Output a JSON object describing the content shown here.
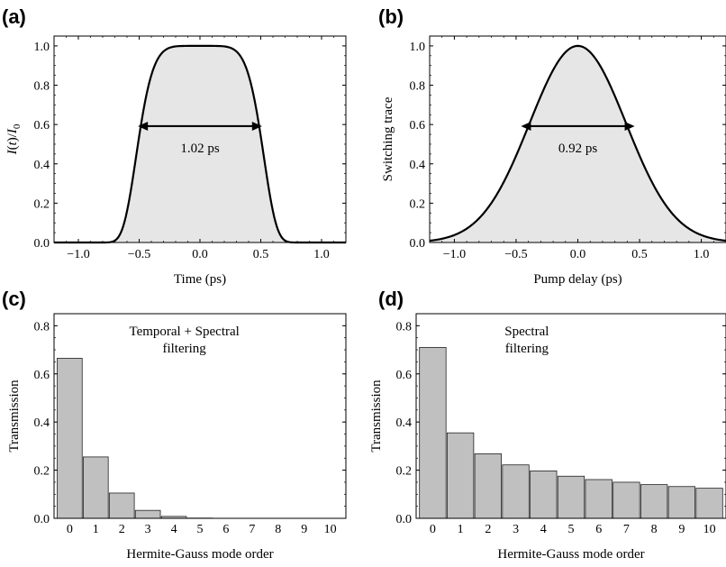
{
  "chart_data": [
    {
      "panel": "(a)",
      "type": "area",
      "xlabel": "Time (ps)",
      "ylabel_parts": [
        "I",
        "(",
        "t",
        ")/",
        "I",
        "0"
      ],
      "xlim": [
        -1.2,
        1.2
      ],
      "ylim": [
        0,
        1.05
      ],
      "xticks": [
        -1.0,
        -0.5,
        0.0,
        0.5,
        1.0
      ],
      "xtick_labels": [
        "−1.0",
        "−0.5",
        "0.0",
        "0.5",
        "1.0"
      ],
      "yticks": [
        0,
        0.2,
        0.4,
        0.6,
        0.8,
        1.0
      ],
      "ytick_labels": [
        "0.0",
        "0.2",
        "0.4",
        "0.6",
        "0.8",
        "1.0"
      ],
      "curve": {
        "kind": "supergaussian",
        "center": 0.0,
        "fwhm": 1.02,
        "order": 6,
        "peak": 1.0,
        "samples": [
          [
            -1.0,
            0.0
          ],
          [
            -0.8,
            0.04
          ],
          [
            -0.6,
            0.38
          ],
          [
            -0.51,
            0.5
          ],
          [
            -0.4,
            0.82
          ],
          [
            -0.2,
            0.99
          ],
          [
            0.0,
            1.0
          ],
          [
            0.2,
            0.99
          ],
          [
            0.4,
            0.82
          ],
          [
            0.51,
            0.5
          ],
          [
            0.6,
            0.38
          ],
          [
            0.8,
            0.04
          ],
          [
            1.0,
            0.0
          ]
        ]
      },
      "annotation": {
        "text": "1.02 ps",
        "arrow_from": -0.51,
        "arrow_to": 0.51,
        "arrow_y": 0.5
      },
      "fill_color": "#e6e6e6",
      "line_color": "#000000"
    },
    {
      "panel": "(b)",
      "type": "area",
      "xlabel": "Pump delay (ps)",
      "ylabel": "Switching trace",
      "xlim": [
        -1.2,
        1.2
      ],
      "ylim": [
        0,
        1.05
      ],
      "xticks": [
        -1.0,
        -0.5,
        0.0,
        0.5,
        1.0
      ],
      "xtick_labels": [
        "−1.0",
        "−0.5",
        "0.0",
        "0.5",
        "1.0"
      ],
      "yticks": [
        0,
        0.2,
        0.4,
        0.6,
        0.8,
        1.0
      ],
      "ytick_labels": [
        "0.0",
        "0.2",
        "0.4",
        "0.6",
        "0.8",
        "1.0"
      ],
      "curve": {
        "kind": "gaussian",
        "center": 0.0,
        "fwhm": 0.92,
        "peak": 1.0,
        "samples": [
          [
            -1.2,
            0.0
          ],
          [
            -1.0,
            0.01
          ],
          [
            -0.8,
            0.12
          ],
          [
            -0.46,
            0.5
          ],
          [
            -0.2,
            0.88
          ],
          [
            0.0,
            1.0
          ],
          [
            0.2,
            0.88
          ],
          [
            0.46,
            0.5
          ],
          [
            0.8,
            0.12
          ],
          [
            1.0,
            0.01
          ],
          [
            1.2,
            0.0
          ]
        ]
      },
      "annotation": {
        "text": "0.92 ps",
        "arrow_from": -0.46,
        "arrow_to": 0.46,
        "arrow_y": 0.5
      },
      "fill_color": "#e6e6e6",
      "line_color": "#000000"
    },
    {
      "panel": "(c)",
      "type": "bar",
      "xlabel": "Hermite-Gauss mode order",
      "ylabel": "Transmission",
      "annotation_lines": [
        "Temporal + Spectral",
        "filtering"
      ],
      "categories": [
        "0",
        "1",
        "2",
        "3",
        "4",
        "5",
        "6",
        "7",
        "8",
        "9",
        "10"
      ],
      "values": [
        0.665,
        0.255,
        0.105,
        0.033,
        0.008,
        0.001,
        0,
        0,
        0,
        0,
        0
      ],
      "ylim": [
        0,
        0.85
      ],
      "yticks": [
        0,
        0.2,
        0.4,
        0.6,
        0.8
      ],
      "ytick_labels": [
        "0.0",
        "0.2",
        "0.4",
        "0.6",
        "0.8"
      ],
      "bar_color": "#c0c0c0"
    },
    {
      "panel": "(d)",
      "type": "bar",
      "xlabel": "Hermite-Gauss mode order",
      "ylabel": "Transmission",
      "annotation_lines": [
        "Spectral",
        "filtering"
      ],
      "categories": [
        "0",
        "1",
        "2",
        "3",
        "4",
        "5",
        "6",
        "7",
        "8",
        "9",
        "10"
      ],
      "values": [
        0.71,
        0.355,
        0.268,
        0.222,
        0.197,
        0.175,
        0.161,
        0.15,
        0.14,
        0.132,
        0.125
      ],
      "ylim": [
        0,
        0.85
      ],
      "yticks": [
        0,
        0.2,
        0.4,
        0.6,
        0.8
      ],
      "ytick_labels": [
        "0.0",
        "0.2",
        "0.4",
        "0.6",
        "0.8"
      ],
      "bar_color": "#c0c0c0"
    }
  ]
}
